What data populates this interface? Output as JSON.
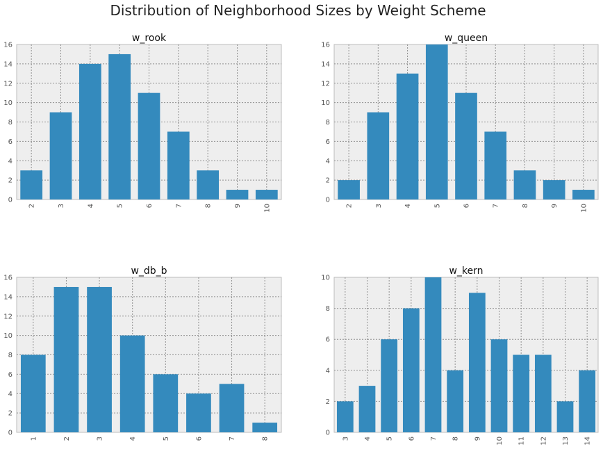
{
  "figure": {
    "title": "Distribution of Neighborhood Sizes by Weight Scheme",
    "bar_color": "#348ABD",
    "background_color": "#EEEEEE"
  },
  "chart_data": [
    {
      "type": "bar",
      "title": "w_rook",
      "categories": [
        "2",
        "3",
        "4",
        "5",
        "6",
        "7",
        "8",
        "9",
        "10"
      ],
      "values": [
        3,
        9,
        14,
        15,
        11,
        7,
        3,
        1,
        1
      ],
      "ylim": [
        0,
        16
      ],
      "yticks": [
        0,
        2,
        4,
        6,
        8,
        10,
        12,
        14,
        16
      ],
      "xlabel": "",
      "ylabel": "",
      "grid": true
    },
    {
      "type": "bar",
      "title": "w_queen",
      "categories": [
        "2",
        "3",
        "4",
        "5",
        "6",
        "7",
        "8",
        "9",
        "10"
      ],
      "values": [
        2,
        9,
        13,
        16,
        11,
        7,
        3,
        2,
        1
      ],
      "ylim": [
        0,
        16
      ],
      "yticks": [
        0,
        2,
        4,
        6,
        8,
        10,
        12,
        14,
        16
      ],
      "xlabel": "",
      "ylabel": "",
      "grid": true
    },
    {
      "type": "bar",
      "title": "w_db_b",
      "categories": [
        "1",
        "2",
        "3",
        "4",
        "5",
        "6",
        "7",
        "8"
      ],
      "values": [
        8,
        15,
        15,
        10,
        6,
        4,
        5,
        1
      ],
      "ylim": [
        0,
        16
      ],
      "yticks": [
        0,
        2,
        4,
        6,
        8,
        10,
        12,
        14,
        16
      ],
      "xlabel": "",
      "ylabel": "",
      "grid": true
    },
    {
      "type": "bar",
      "title": "w_kern",
      "categories": [
        "3",
        "4",
        "5",
        "6",
        "7",
        "8",
        "9",
        "10",
        "11",
        "12",
        "13",
        "14"
      ],
      "values": [
        2,
        3,
        6,
        8,
        10,
        4,
        9,
        6,
        5,
        5,
        2,
        4
      ],
      "ylim": [
        0,
        10
      ],
      "yticks": [
        0,
        2,
        4,
        6,
        8,
        10
      ],
      "xlabel": "",
      "ylabel": "",
      "grid": true
    }
  ]
}
